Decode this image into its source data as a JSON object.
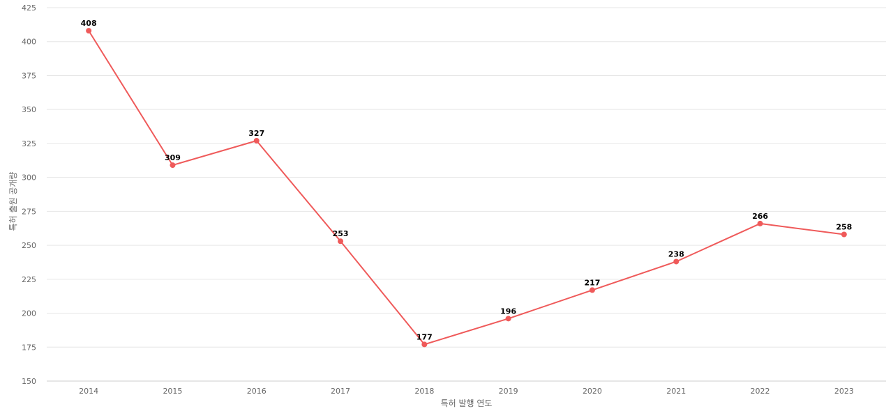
{
  "chart_data": {
    "type": "line",
    "title": "",
    "xlabel": "특허 발행 연도",
    "ylabel": "특허 출원 공개량",
    "categories": [
      "2014",
      "2015",
      "2016",
      "2017",
      "2018",
      "2019",
      "2020",
      "2021",
      "2022",
      "2023"
    ],
    "series": [
      {
        "values": [
          408,
          309,
          327,
          253,
          177,
          196,
          217,
          238,
          266,
          258
        ],
        "color": "#ef5a5a"
      }
    ],
    "ylim": [
      150,
      425
    ],
    "yticks": [
      150,
      175,
      200,
      225,
      250,
      275,
      300,
      325,
      350,
      375,
      400,
      425
    ],
    "grid": true,
    "legend": "none",
    "data_labels": true
  }
}
